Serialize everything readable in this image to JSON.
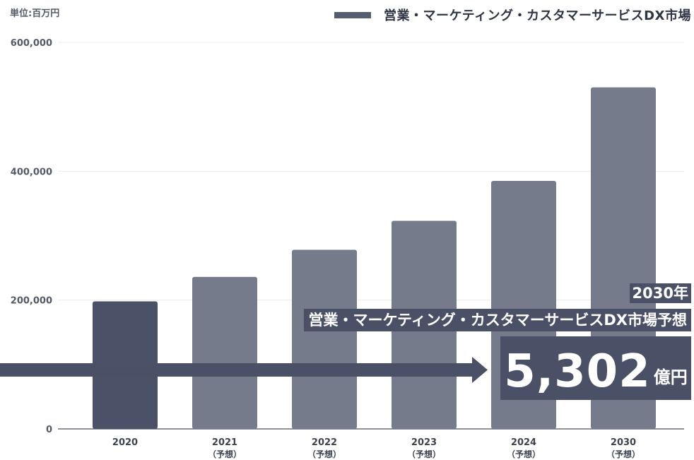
{
  "unit_label": "単位:百万円",
  "legend_label": "営業・マーケティング・カスタマーサービスDX市場",
  "callout": {
    "year": "2030年",
    "title": "営業・マーケティング・カスタマーサービスDX市場予想",
    "value": "5,302",
    "unit": "億円"
  },
  "colors": {
    "bar_actual": "#4b5268",
    "bar_forecast": "#767b8c",
    "callout_bg": "#4a5167",
    "arrow": "#4a5167"
  },
  "chart_data": {
    "type": "bar",
    "categories": [
      "2020",
      "2021",
      "2022",
      "2023",
      "2024",
      "2030"
    ],
    "category_sublabels": [
      "",
      "（予想）",
      "（予想）",
      "（予想）",
      "（予想）",
      "（予想）"
    ],
    "series": [
      {
        "name": "営業・マーケティング・カスタマーサービスDX市場",
        "values": [
          198000,
          236000,
          278000,
          323000,
          385000,
          530200
        ]
      }
    ],
    "forecast": [
      false,
      true,
      true,
      true,
      true,
      true
    ],
    "yticks": [
      0,
      200000,
      400000,
      600000
    ],
    "ytick_labels": [
      "0",
      "200,000",
      "400,000",
      "600,000"
    ],
    "ylim": [
      0,
      600000
    ],
    "grid": true,
    "legend_position": "top-right"
  }
}
